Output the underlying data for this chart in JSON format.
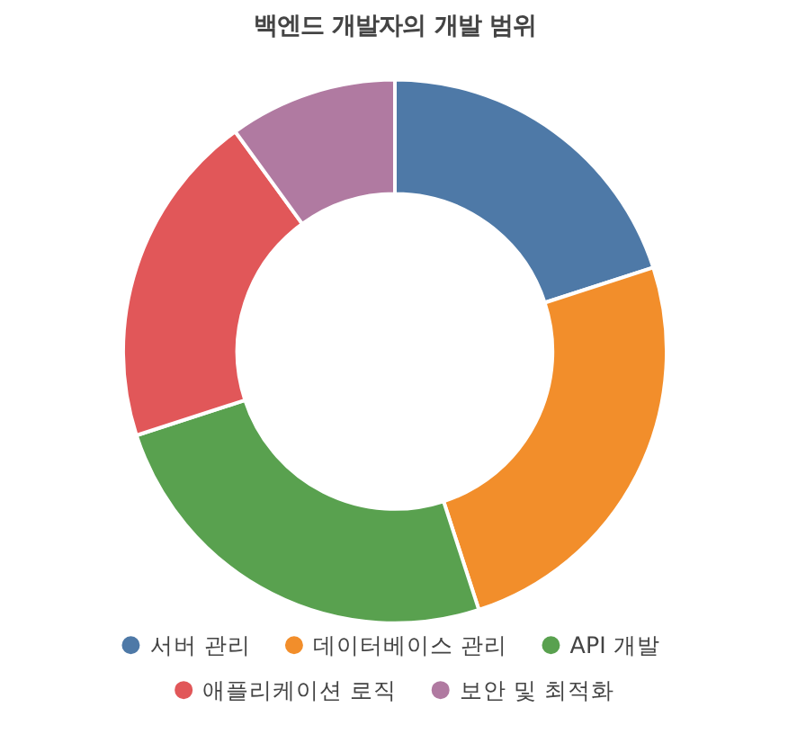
{
  "chart_data": {
    "type": "donut",
    "title": "백엔드 개발자의 개발 범위",
    "categories": [
      "서버 관리",
      "데이터베이스 관리",
      "API 개발",
      "애플리케이션 로직",
      "보안 및 최적화"
    ],
    "values": [
      20,
      25,
      25,
      20,
      10
    ],
    "colors": [
      "#4e79a7",
      "#f28e2b",
      "#59a14f",
      "#e15759",
      "#b07aa1"
    ],
    "legend": "bottom"
  }
}
